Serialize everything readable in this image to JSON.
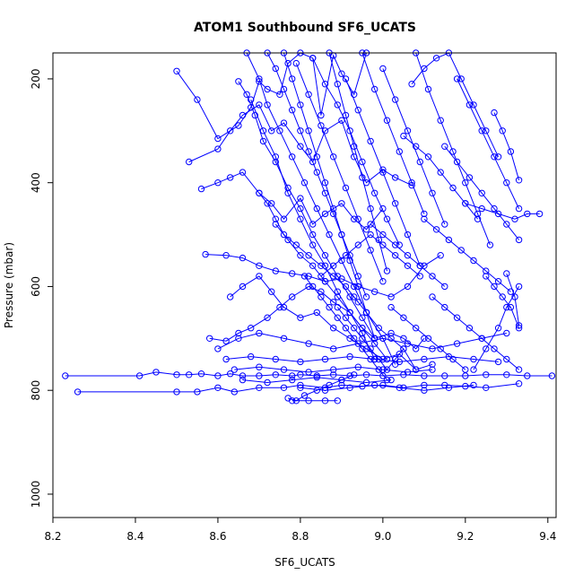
{
  "chart_data": {
    "type": "line",
    "title": "ATOM1 Southbound SF6_UCATS",
    "xlabel": "SF6_UCATS",
    "ylabel": "Pressure (mbar)",
    "xlim": [
      8.2,
      9.42
    ],
    "ylim": [
      1045,
      150
    ],
    "y_reversed": true,
    "xticks": [
      8.2,
      8.4,
      8.6,
      8.8,
      9.0,
      9.2,
      9.4
    ],
    "xtick_labels": [
      "8.2",
      "8.4",
      "8.6",
      "8.8",
      "9.0",
      "9.2",
      "9.4"
    ],
    "yticks": [
      200,
      400,
      600,
      800,
      1000
    ],
    "ytick_labels": [
      "200",
      "400",
      "600",
      "800",
      "1000"
    ],
    "grid": false,
    "legend": "none",
    "line_color": "#0000ff",
    "marker": "open-circle",
    "series": [
      {
        "x": [
          8.23,
          8.41,
          8.45,
          8.5,
          8.53,
          8.56,
          8.6,
          8.63,
          8.66,
          8.7,
          8.74,
          8.78,
          8.8,
          8.84,
          8.88,
          8.92,
          8.96,
          9.0,
          9.05,
          9.1,
          9.15,
          9.2,
          9.25,
          9.3,
          9.35,
          9.41
        ],
        "y": [
          772,
          772,
          765,
          770,
          770,
          768,
          772,
          768,
          772,
          772,
          770,
          772,
          770,
          772,
          770,
          772,
          770,
          772,
          770,
          772,
          772,
          772,
          770,
          770,
          772,
          772
        ]
      },
      {
        "x": [
          8.26,
          8.5,
          8.55,
          8.6,
          8.64,
          8.7,
          8.76,
          8.8,
          8.86,
          8.9,
          8.95,
          9.0,
          9.05,
          9.1,
          9.15,
          9.2,
          9.25,
          9.33
        ],
        "y": [
          803,
          803,
          803,
          795,
          803,
          795,
          795,
          790,
          795,
          790,
          792,
          790,
          795,
          790,
          790,
          792,
          795,
          787
        ]
      },
      {
        "x": [
          8.5,
          8.55,
          8.6,
          8.65,
          8.68,
          8.7,
          8.72,
          8.75,
          8.77,
          8.8,
          8.83,
          8.85,
          8.88,
          8.9,
          8.93,
          8.96
        ],
        "y": [
          185,
          240,
          315,
          290,
          255,
          205,
          220,
          230,
          170,
          150,
          160,
          270,
          155,
          190,
          230,
          150
        ]
      },
      {
        "x": [
          8.53,
          8.6,
          8.63,
          8.66,
          8.7,
          8.73,
          8.76,
          8.8,
          8.83,
          8.86,
          8.9,
          8.93,
          8.96,
          9.0,
          9.03,
          9.07
        ],
        "y": [
          360,
          335,
          300,
          270,
          250,
          300,
          285,
          330,
          360,
          300,
          280,
          350,
          400,
          375,
          390,
          405
        ]
      },
      {
        "x": [
          8.56,
          8.6,
          8.63,
          8.66,
          8.7,
          8.73,
          8.76,
          8.8,
          8.83,
          8.86,
          8.9,
          8.93,
          8.96,
          9.0
        ],
        "y": [
          412,
          400,
          390,
          380,
          420,
          440,
          470,
          430,
          480,
          460,
          440,
          470,
          490,
          450
        ]
      },
      {
        "x": [
          8.57,
          8.62,
          8.66,
          8.7,
          8.74,
          8.78,
          8.82,
          8.86,
          8.9,
          8.94,
          8.98,
          9.02,
          9.06,
          9.1,
          9.14
        ],
        "y": [
          538,
          540,
          545,
          560,
          570,
          575,
          580,
          590,
          585,
          600,
          610,
          620,
          600,
          560,
          540
        ]
      },
      {
        "x": [
          8.58,
          8.62,
          8.65,
          8.68,
          8.72,
          8.75,
          8.78,
          8.82,
          8.85,
          8.88,
          8.92,
          8.95,
          8.98,
          9.02,
          9.05,
          9.08,
          9.1
        ],
        "y": [
          700,
          705,
          690,
          680,
          660,
          640,
          620,
          600,
          610,
          630,
          650,
          680,
          700,
          690,
          700,
          720,
          700
        ]
      },
      {
        "x": [
          8.63,
          8.66,
          8.7,
          8.73,
          8.76,
          8.8,
          8.84,
          8.88,
          8.92,
          8.96,
          9.0,
          9.04,
          9.08,
          9.12
        ],
        "y": [
          620,
          600,
          580,
          610,
          640,
          660,
          650,
          680,
          700,
          720,
          740,
          730,
          760,
          750
        ]
      },
      {
        "x": [
          8.65,
          8.67,
          8.69,
          8.71,
          8.74,
          8.77,
          8.8,
          8.83,
          8.86,
          8.89,
          8.92,
          8.95,
          8.98
        ],
        "y": [
          205,
          230,
          270,
          320,
          360,
          410,
          450,
          500,
          540,
          580,
          620,
          660,
          700
        ]
      },
      {
        "x": [
          8.67,
          8.7,
          8.72,
          8.75,
          8.78,
          8.81,
          8.84,
          8.87,
          8.9,
          8.93,
          8.96,
          9.0,
          9.03
        ],
        "y": [
          150,
          200,
          250,
          300,
          350,
          400,
          450,
          500,
          550,
          600,
          650,
          700,
          750
        ]
      },
      {
        "x": [
          8.68,
          8.71,
          8.74,
          8.77,
          8.8,
          8.83,
          8.86,
          8.89,
          8.92,
          8.95,
          8.98
        ],
        "y": [
          240,
          300,
          350,
          420,
          470,
          520,
          560,
          610,
          650,
          690,
          740
        ]
      },
      {
        "x": [
          8.7,
          8.72,
          8.74,
          8.76,
          8.79,
          8.82,
          8.85,
          8.88,
          8.91,
          8.94
        ],
        "y": [
          420,
          440,
          470,
          500,
          520,
          540,
          560,
          580,
          600,
          630
        ]
      },
      {
        "x": [
          8.72,
          8.74,
          8.76,
          8.78,
          8.8,
          8.82,
          8.84,
          8.86,
          8.88,
          8.9,
          8.92,
          8.94,
          8.96
        ],
        "y": [
          150,
          180,
          220,
          260,
          300,
          340,
          380,
          420,
          460,
          500,
          540,
          580,
          620
        ]
      },
      {
        "x": [
          8.74,
          8.77,
          8.8,
          8.83,
          8.86,
          8.89,
          8.92,
          8.95,
          8.98,
          9.01
        ],
        "y": [
          480,
          510,
          540,
          560,
          590,
          620,
          650,
          680,
          710,
          740
        ]
      },
      {
        "x": [
          8.76,
          8.78,
          8.8,
          8.82,
          8.84,
          8.86,
          8.88,
          8.9,
          8.92,
          8.94,
          8.96,
          8.98
        ],
        "y": [
          150,
          200,
          250,
          300,
          350,
          400,
          450,
          500,
          550,
          600,
          650,
          700
        ]
      },
      {
        "x": [
          8.77,
          8.79,
          8.81,
          8.84,
          8.87,
          8.9,
          8.93
        ],
        "y": [
          815,
          820,
          810,
          800,
          790,
          780,
          770
        ]
      },
      {
        "x": [
          8.78,
          8.82,
          8.86,
          8.89
        ],
        "y": [
          820,
          820,
          820,
          820
        ]
      },
      {
        "x": [
          8.79,
          8.82,
          8.85,
          8.88,
          8.91,
          8.94,
          8.97,
          9.0
        ],
        "y": [
          170,
          230,
          290,
          350,
          410,
          470,
          530,
          590
        ]
      },
      {
        "x": [
          8.81,
          8.83,
          8.85,
          8.87,
          8.89,
          8.91,
          8.93,
          8.95,
          8.97,
          8.99,
          9.01
        ],
        "y": [
          580,
          600,
          620,
          640,
          660,
          680,
          700,
          720,
          740,
          760,
          780
        ]
      },
      {
        "x": [
          8.83,
          8.86,
          8.89,
          8.92,
          8.95,
          8.98,
          9.01,
          9.04
        ],
        "y": [
          160,
          210,
          250,
          300,
          360,
          420,
          470,
          520
        ]
      },
      {
        "x": [
          8.85,
          8.88,
          8.91,
          8.94,
          8.97,
          9.0,
          9.03,
          9.06,
          9.09
        ],
        "y": [
          580,
          560,
          540,
          520,
          500,
          520,
          540,
          560,
          580
        ]
      },
      {
        "x": [
          8.87,
          8.89,
          8.91,
          8.93,
          8.95,
          8.97,
          8.99,
          9.01
        ],
        "y": [
          150,
          210,
          270,
          330,
          390,
          450,
          510,
          570
        ]
      },
      {
        "x": [
          8.89,
          8.91,
          8.93,
          8.95,
          8.97,
          8.99,
          9.01,
          9.03,
          9.05
        ],
        "y": [
          640,
          660,
          680,
          700,
          720,
          740,
          760,
          740,
          720
        ]
      },
      {
        "x": [
          8.91,
          8.94,
          8.97,
          9.0,
          9.03,
          9.06,
          9.09
        ],
        "y": [
          200,
          260,
          320,
          380,
          440,
          500,
          560
        ]
      },
      {
        "x": [
          8.93,
          8.96,
          8.99,
          9.02,
          9.05,
          9.08
        ],
        "y": [
          620,
          650,
          680,
          700,
          720,
          760
        ]
      },
      {
        "x": [
          8.95,
          8.98,
          9.01,
          9.04,
          9.07,
          9.1
        ],
        "y": [
          150,
          220,
          280,
          340,
          400,
          460
        ]
      },
      {
        "x": [
          8.97,
          9.0,
          9.03,
          9.06,
          9.09,
          9.12,
          9.15
        ],
        "y": [
          480,
          500,
          520,
          540,
          560,
          580,
          600
        ]
      },
      {
        "x": [
          9.0,
          9.03,
          9.06,
          9.09,
          9.12,
          9.15
        ],
        "y": [
          180,
          240,
          300,
          360,
          420,
          480
        ]
      },
      {
        "x": [
          9.02,
          9.05,
          9.08,
          9.11,
          9.14,
          9.17,
          9.2
        ],
        "y": [
          640,
          660,
          680,
          700,
          720,
          740,
          760
        ]
      },
      {
        "x": [
          9.05,
          9.08,
          9.11,
          9.14,
          9.17,
          9.2,
          9.23
        ],
        "y": [
          310,
          330,
          350,
          380,
          410,
          440,
          470
        ]
      },
      {
        "x": [
          9.07,
          9.1,
          9.13,
          9.16,
          9.19,
          9.22,
          9.25,
          9.28
        ],
        "y": [
          210,
          180,
          160,
          150,
          200,
          250,
          300,
          350
        ]
      },
      {
        "x": [
          9.08,
          9.11,
          9.14,
          9.17,
          9.2,
          9.23,
          9.26
        ],
        "y": [
          150,
          220,
          280,
          340,
          400,
          460,
          520
        ]
      },
      {
        "x": [
          9.1,
          9.13,
          9.16,
          9.19,
          9.22,
          9.25,
          9.28,
          9.31
        ],
        "y": [
          470,
          490,
          510,
          530,
          550,
          570,
          590,
          610
        ]
      },
      {
        "x": [
          9.12,
          9.15,
          9.18,
          9.21,
          9.24,
          9.27,
          9.3,
          9.33
        ],
        "y": [
          620,
          640,
          660,
          680,
          700,
          720,
          740,
          760
        ]
      },
      {
        "x": [
          9.15,
          9.18,
          9.21,
          9.24,
          9.27,
          9.3,
          9.33
        ],
        "y": [
          330,
          360,
          390,
          420,
          450,
          480,
          510
        ]
      },
      {
        "x": [
          9.18,
          9.21,
          9.24,
          9.27,
          9.3,
          9.33
        ],
        "y": [
          200,
          250,
          300,
          350,
          400,
          450
        ]
      },
      {
        "x": [
          9.2,
          9.24,
          9.28,
          9.32,
          9.35,
          9.38
        ],
        "y": [
          440,
          450,
          460,
          470,
          460,
          460
        ]
      },
      {
        "x": [
          9.22,
          9.25,
          9.28,
          9.3,
          9.33
        ],
        "y": [
          760,
          720,
          680,
          640,
          600
        ]
      },
      {
        "x": [
          9.25,
          9.27,
          9.29,
          9.31,
          9.33
        ],
        "y": [
          580,
          600,
          620,
          640,
          680
        ]
      },
      {
        "x": [
          9.27,
          9.29,
          9.31,
          9.33
        ],
        "y": [
          265,
          300,
          340,
          395
        ]
      },
      {
        "x": [
          9.3,
          9.32,
          9.33
        ],
        "y": [
          575,
          620,
          675
        ]
      },
      {
        "x": [
          8.6,
          8.65,
          8.7,
          8.76,
          8.82,
          8.88,
          8.94,
          9.0,
          9.06,
          9.12,
          9.18,
          9.24,
          9.3
        ],
        "y": [
          720,
          700,
          690,
          700,
          710,
          720,
          710,
          700,
          710,
          720,
          710,
          700,
          690
        ]
      },
      {
        "x": [
          8.62,
          8.68,
          8.74,
          8.8,
          8.86,
          8.92,
          8.98,
          9.04,
          9.1,
          9.16,
          9.22,
          9.28
        ],
        "y": [
          740,
          735,
          740,
          745,
          740,
          735,
          740,
          745,
          740,
          735,
          740,
          745
        ]
      },
      {
        "x": [
          8.64,
          8.7,
          8.76,
          8.82,
          8.88,
          8.94,
          9.0,
          9.06,
          9.12
        ],
        "y": [
          760,
          755,
          760,
          765,
          760,
          755,
          760,
          765,
          760
        ]
      },
      {
        "x": [
          8.66,
          8.72,
          8.78,
          8.84,
          8.9,
          8.96,
          9.02
        ],
        "y": [
          780,
          785,
          780,
          775,
          780,
          785,
          780
        ]
      },
      {
        "x": [
          8.8,
          8.86,
          8.92,
          8.98,
          9.04,
          9.1,
          9.16,
          9.22
        ],
        "y": [
          795,
          800,
          795,
          790,
          795,
          800,
          795,
          790
        ]
      }
    ]
  }
}
